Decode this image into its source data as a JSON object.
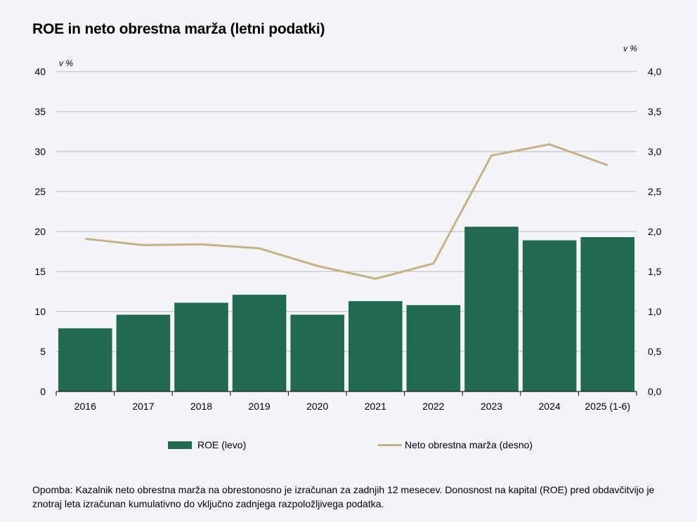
{
  "title": "ROE in neto obrestna marža (letni podatki)",
  "chart_data": {
    "type": "bar+line",
    "categories": [
      "2016",
      "2017",
      "2018",
      "2019",
      "2020",
      "2021",
      "2022",
      "2023",
      "2024",
      "2025 (1-6)"
    ],
    "series": [
      {
        "name": "ROE (levo)",
        "type": "bar",
        "axis": "left",
        "color": "#206a52",
        "values": [
          7.9,
          9.6,
          11.1,
          12.1,
          9.6,
          11.3,
          10.8,
          20.6,
          18.9,
          19.3
        ]
      },
      {
        "name": "Neto obrestna marža (desno)",
        "type": "line",
        "axis": "right",
        "color": "#c4b282",
        "values": [
          1.91,
          1.83,
          1.84,
          1.79,
          1.57,
          1.41,
          1.6,
          2.95,
          3.09,
          2.83
        ]
      }
    ],
    "y_left": {
      "unit": "v %",
      "min": 0,
      "max": 40,
      "ticks": [
        "0",
        "5",
        "10",
        "15",
        "20",
        "25",
        "30",
        "35",
        "40"
      ]
    },
    "y_right": {
      "unit": "v %",
      "min": 0,
      "max": 4,
      "ticks": [
        "0,0",
        "0,5",
        "1,0",
        "1,5",
        "2,0",
        "2,5",
        "3,0",
        "3,5",
        "4,0"
      ]
    },
    "grid": true,
    "legend_position": "bottom"
  },
  "legend": {
    "bar_label": "ROE (levo)",
    "line_label": "Neto obrestna marža (desno)"
  },
  "note": "Opomba: Kazalnik neto obrestna marža na obrestonosno je izračunan za zadnjih 12 mesecev. Donosnost na kapital (ROE) pred obdavčitvijo je znotraj leta izračunan kumulativno do vključno zadnjega razpoložljivega podatka."
}
